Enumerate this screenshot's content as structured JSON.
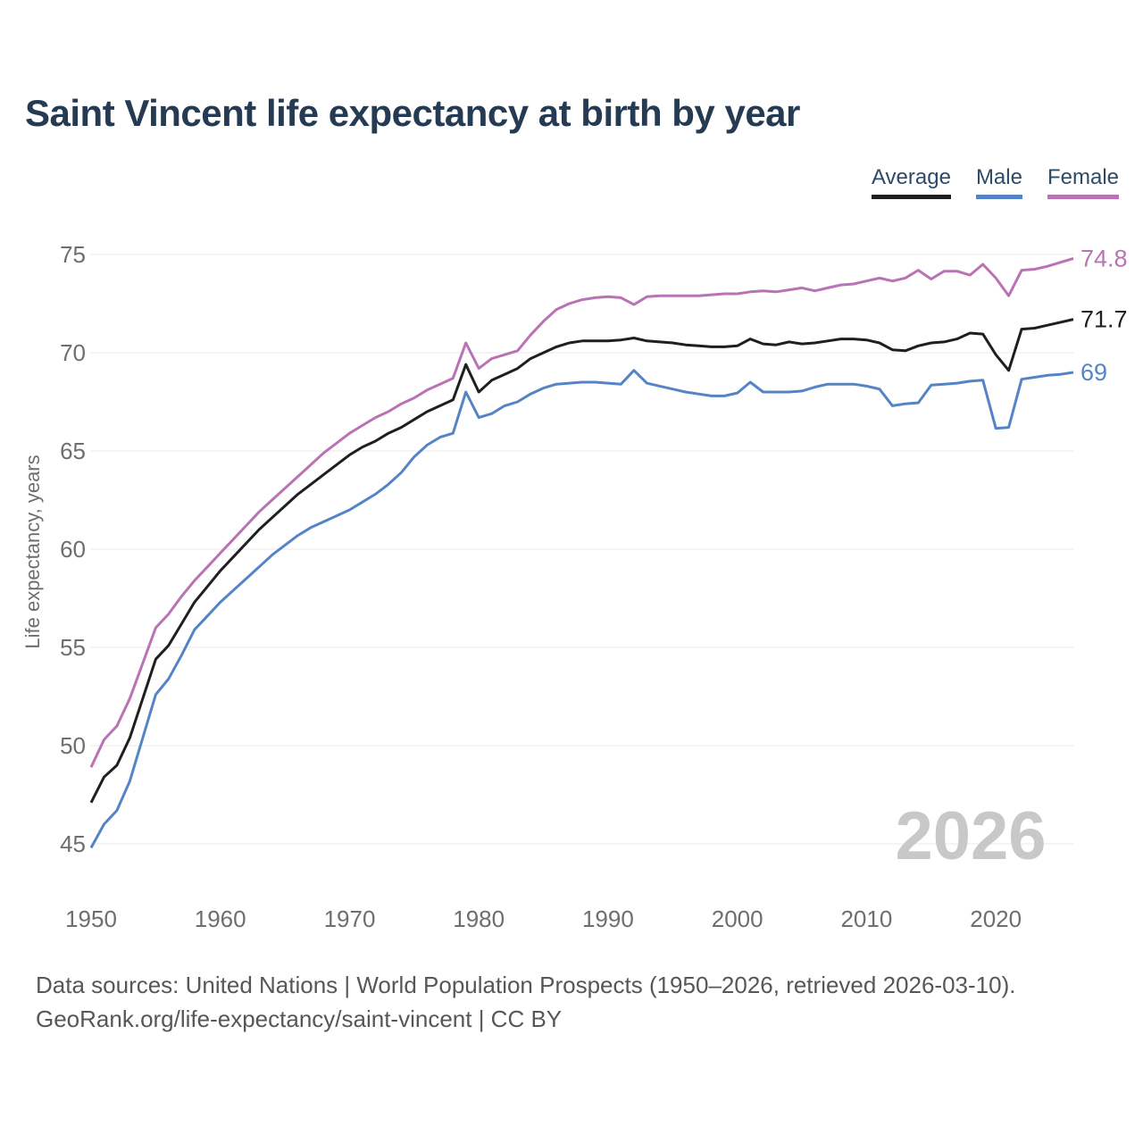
{
  "header": {
    "title": "Saint Vincent life expectancy at birth by year"
  },
  "chart_data": {
    "type": "line",
    "title": "Saint Vincent life expectancy at birth by year",
    "xlabel": "",
    "ylabel": "Life expectancy, years",
    "xlim": [
      1950,
      2026
    ],
    "ylim": [
      45,
      75
    ],
    "yticks": [
      45,
      50,
      55,
      60,
      65,
      70,
      75
    ],
    "xticks": [
      1950,
      1960,
      1970,
      1980,
      1990,
      2000,
      2010,
      2020
    ],
    "grid": "horizontal",
    "legend_position": "top-right",
    "watermark": "2026",
    "x": [
      1950,
      1951,
      1952,
      1953,
      1954,
      1955,
      1956,
      1957,
      1958,
      1959,
      1960,
      1961,
      1962,
      1963,
      1964,
      1965,
      1966,
      1967,
      1968,
      1969,
      1970,
      1971,
      1972,
      1973,
      1974,
      1975,
      1976,
      1977,
      1978,
      1979,
      1980,
      1981,
      1982,
      1983,
      1984,
      1985,
      1986,
      1987,
      1988,
      1989,
      1990,
      1991,
      1992,
      1993,
      1994,
      1995,
      1996,
      1997,
      1998,
      1999,
      2000,
      2001,
      2002,
      2003,
      2004,
      2005,
      2006,
      2007,
      2008,
      2009,
      2010,
      2011,
      2012,
      2013,
      2014,
      2015,
      2016,
      2017,
      2018,
      2019,
      2020,
      2021,
      2022,
      2023,
      2024,
      2025,
      2026
    ],
    "series": [
      {
        "name": "Average",
        "color": "#1f1f1f",
        "end_label": "71.7",
        "values": [
          47.1,
          48.4,
          49.0,
          50.4,
          52.4,
          54.4,
          55.1,
          56.2,
          57.3,
          58.1,
          58.9,
          59.6,
          60.3,
          61.0,
          61.6,
          62.2,
          62.8,
          63.3,
          63.8,
          64.3,
          64.8,
          65.2,
          65.5,
          65.9,
          66.2,
          66.6,
          67.0,
          67.3,
          67.6,
          69.4,
          68.0,
          68.6,
          68.9,
          69.2,
          69.7,
          70.0,
          70.3,
          70.5,
          70.6,
          70.6,
          70.6,
          70.65,
          70.75,
          70.6,
          70.55,
          70.5,
          70.4,
          70.35,
          70.3,
          70.3,
          70.35,
          70.7,
          70.45,
          70.4,
          70.55,
          70.45,
          70.5,
          70.6,
          70.7,
          70.7,
          70.65,
          70.5,
          70.15,
          70.1,
          70.35,
          70.5,
          70.55,
          70.7,
          71.0,
          70.95,
          69.9,
          69.1,
          71.2,
          71.25,
          71.4,
          71.55,
          71.7
        ]
      },
      {
        "name": "Male",
        "color": "#5584c6",
        "end_label": "69",
        "values": [
          44.8,
          46.0,
          46.7,
          48.2,
          50.4,
          52.6,
          53.4,
          54.6,
          55.9,
          56.6,
          57.3,
          57.9,
          58.5,
          59.1,
          59.7,
          60.2,
          60.7,
          61.1,
          61.4,
          61.7,
          62.0,
          62.4,
          62.8,
          63.3,
          63.9,
          64.7,
          65.3,
          65.7,
          65.9,
          68.0,
          66.7,
          66.9,
          67.3,
          67.5,
          67.9,
          68.2,
          68.4,
          68.45,
          68.5,
          68.5,
          68.45,
          68.4,
          69.1,
          68.45,
          68.3,
          68.15,
          68.0,
          67.9,
          67.8,
          67.8,
          67.95,
          68.5,
          68.0,
          68.0,
          68.0,
          68.05,
          68.25,
          68.4,
          68.4,
          68.4,
          68.3,
          68.15,
          67.3,
          67.4,
          67.45,
          68.35,
          68.4,
          68.45,
          68.55,
          68.6,
          66.15,
          66.2,
          68.65,
          68.75,
          68.85,
          68.9,
          69.0
        ]
      },
      {
        "name": "Female",
        "color": "#b973b4",
        "end_label": "74.8",
        "values": [
          48.9,
          50.3,
          51.0,
          52.4,
          54.2,
          56.0,
          56.7,
          57.6,
          58.4,
          59.1,
          59.8,
          60.5,
          61.2,
          61.9,
          62.5,
          63.1,
          63.7,
          64.3,
          64.9,
          65.4,
          65.9,
          66.3,
          66.7,
          67.0,
          67.4,
          67.7,
          68.1,
          68.4,
          68.7,
          70.5,
          69.2,
          69.7,
          69.9,
          70.1,
          70.9,
          71.6,
          72.2,
          72.5,
          72.7,
          72.8,
          72.85,
          72.8,
          72.45,
          72.85,
          72.9,
          72.9,
          72.9,
          72.9,
          72.95,
          73.0,
          73.0,
          73.1,
          73.15,
          73.1,
          73.2,
          73.3,
          73.15,
          73.3,
          73.45,
          73.5,
          73.65,
          73.8,
          73.65,
          73.8,
          74.2,
          73.75,
          74.15,
          74.15,
          73.95,
          74.5,
          73.8,
          72.9,
          74.2,
          74.25,
          74.4,
          74.6,
          74.8
        ]
      }
    ]
  },
  "footer": {
    "line1": "Data sources: United Nations | World Population Prospects (1950–2026, retrieved 2026-03-10).",
    "line2": "GeoRank.org/life-expectancy/saint-vincent | CC BY"
  }
}
